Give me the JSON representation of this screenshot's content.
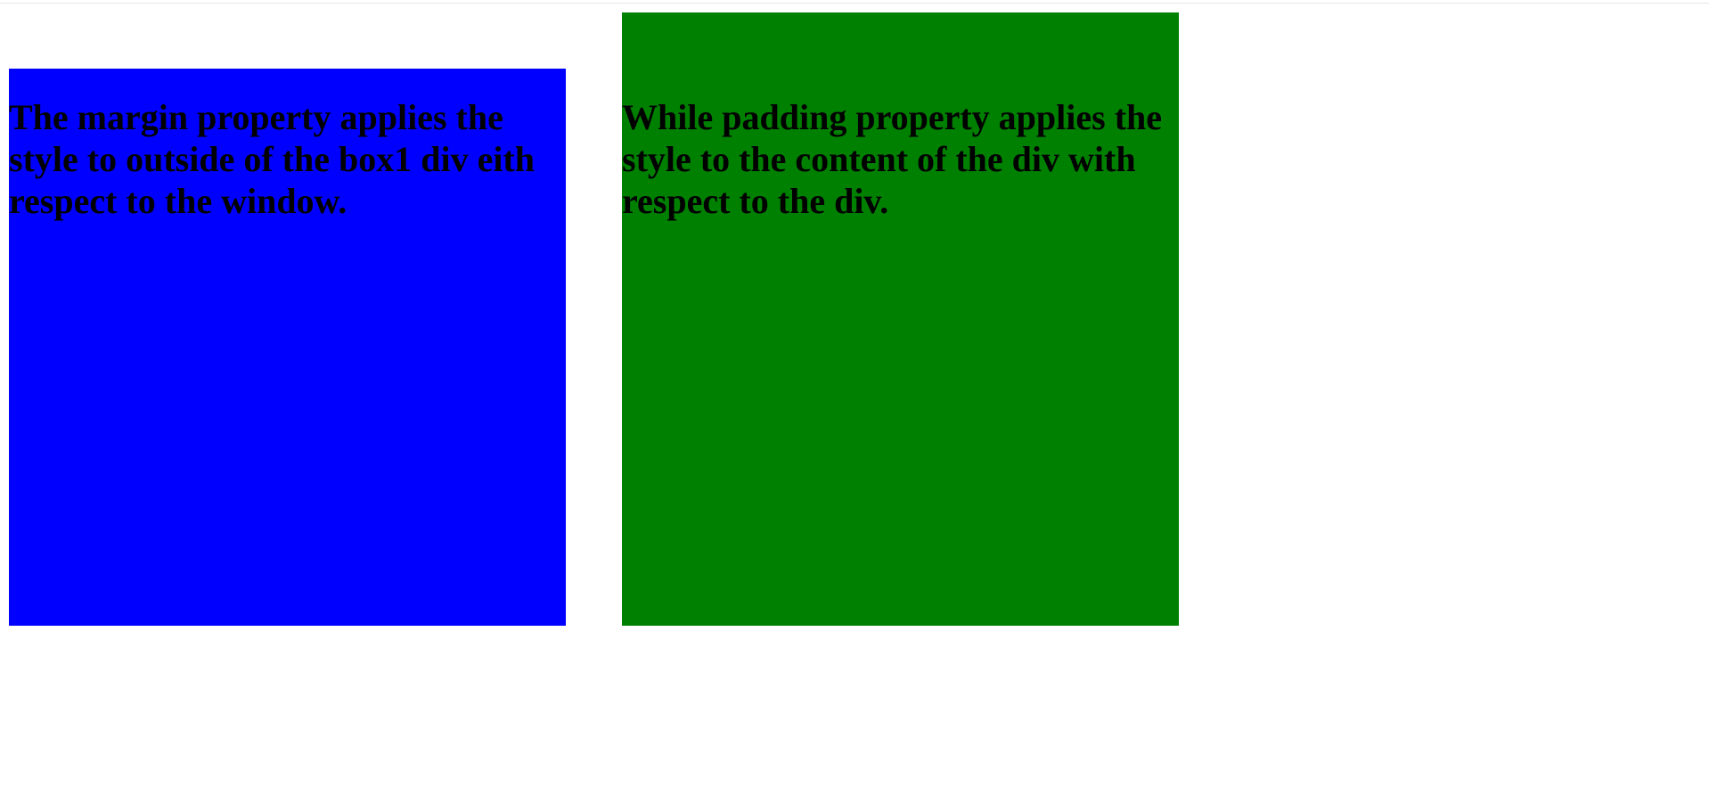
{
  "colors": {
    "page_background": "#ffffff",
    "box1_background": "#0000ff",
    "box2_background": "#008000",
    "text": "#000000"
  },
  "box1": {
    "text": "The margin property applies the style to outside of the box1 div eith respect to the window."
  },
  "box2": {
    "text": "While padding property applies the style to the content of the div with respect to the div."
  }
}
